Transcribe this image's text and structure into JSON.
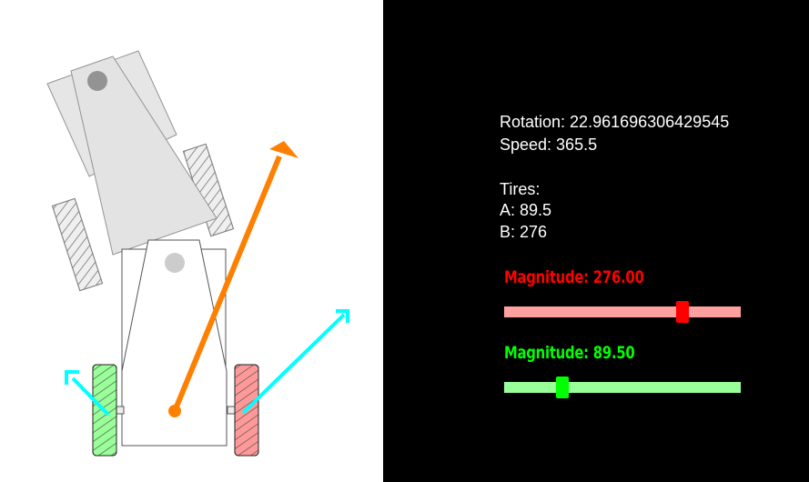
{
  "info": {
    "rotation_label": "Rotation: 22.961696306429545",
    "speed_label": "Speed: 365.5",
    "tires_heading": "Tires:",
    "tire_a": "A: 89.5",
    "tire_b": "B: 276"
  },
  "sliders": [
    {
      "label": "Magnitude: 276.00",
      "value": 276,
      "min": 0,
      "max": 365.5,
      "label_color": "#ff0000",
      "track_color": "#ffa0a0",
      "thumb_color": "#ff0000"
    },
    {
      "label": "Magnitude: 89.50",
      "value": 89.5,
      "min": 0,
      "max": 365.5,
      "label_color": "#00ff00",
      "track_color": "#99ff99",
      "thumb_color": "#00ff00"
    }
  ],
  "colors": {
    "speed_vector": "#ff8000",
    "tire_vectors": "#00ffff",
    "left_tire": "#99ff99",
    "right_tire": "#ff9999",
    "ghost_body": "#dddddd",
    "panel_bg": "#000000"
  }
}
